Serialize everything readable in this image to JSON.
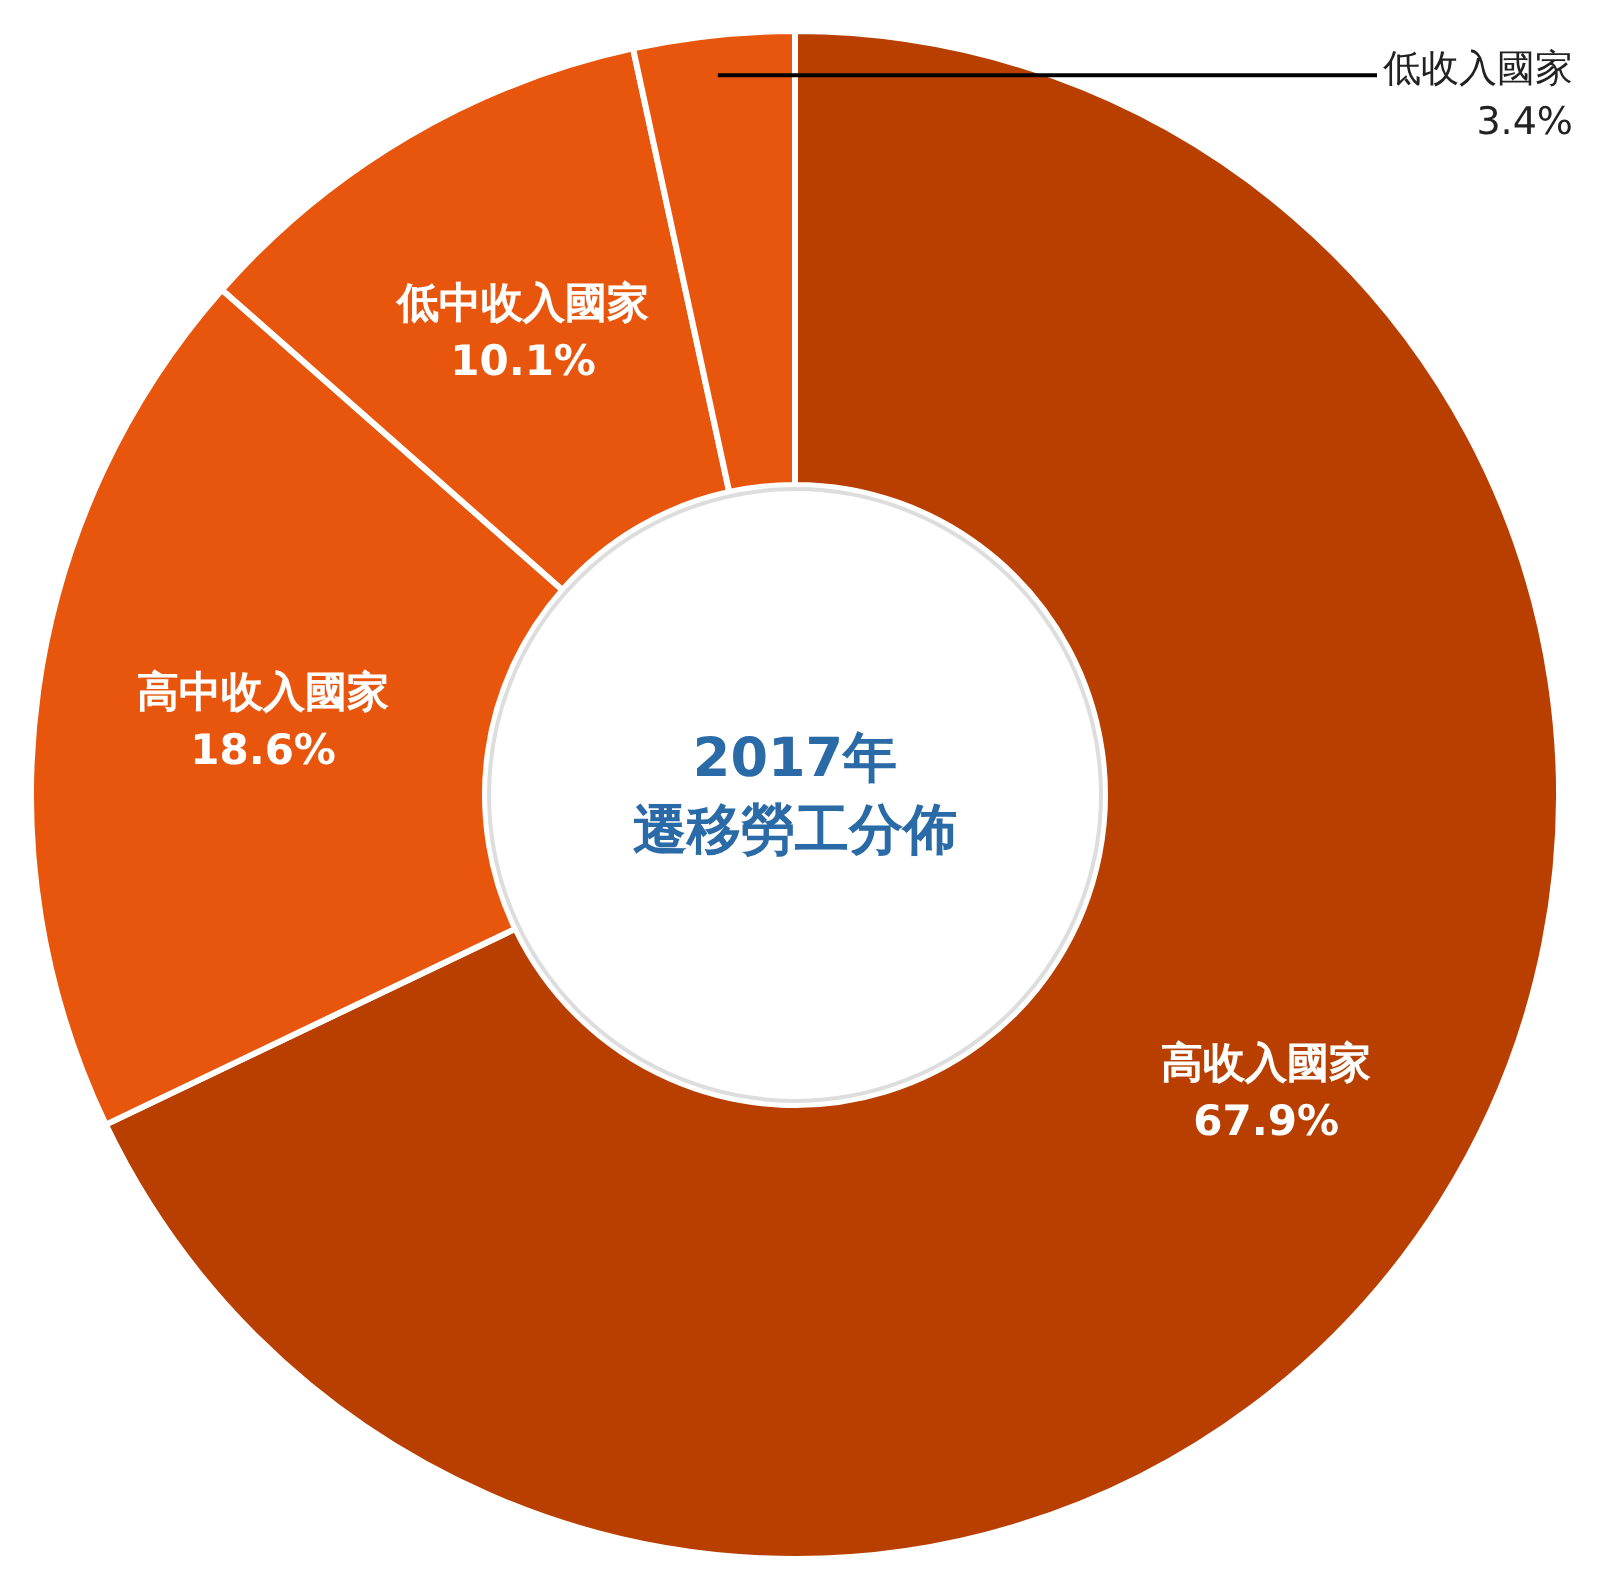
{
  "chart_data": {
    "type": "donut",
    "title": "2017年",
    "subtitle": "遷移勞工分佈",
    "categories": [
      "高收入國家",
      "高中收入國家",
      "低中收入國家",
      "低收入國家"
    ],
    "values": [
      67.9,
      18.6,
      10.1,
      3.4
    ],
    "colors": [
      "#b93f00",
      "#e8550c",
      "#e8550c",
      "#e8550c"
    ],
    "value_labels": [
      "67.9%",
      "18.6%",
      "10.1%",
      "3.4%"
    ]
  }
}
